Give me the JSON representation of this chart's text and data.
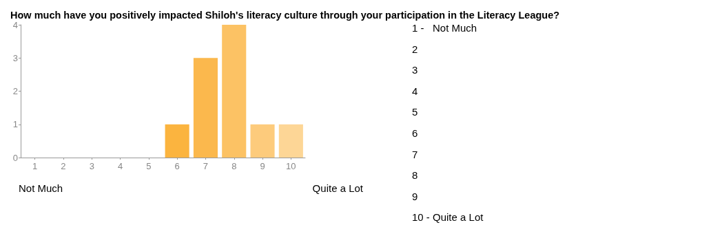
{
  "chart_data": {
    "type": "bar",
    "title": "How much have you positively impacted Shiloh's literacy culture through your participation in the Literacy League?",
    "categories": [
      "1",
      "2",
      "3",
      "4",
      "5",
      "6",
      "7",
      "8",
      "9",
      "10"
    ],
    "values": [
      0,
      0,
      0,
      0,
      0,
      1,
      3,
      4,
      1,
      1
    ],
    "colors": [
      "#fbb43f",
      "#fbb43f",
      "#fbb43f",
      "#fbb43f",
      "#fbb43f",
      "#fbb43f",
      "#fbb84d",
      "#fcc264",
      "#fdcb7c",
      "#fdd696"
    ],
    "ylim": [
      0,
      4
    ],
    "yticks": [
      0,
      1,
      2,
      3,
      4
    ],
    "grid": false,
    "annotations": [
      "Not Much",
      "Quite a Lot",
      "1 -   Not Much",
      "2",
      "3",
      "4",
      "5",
      "6",
      "7",
      "8",
      "9",
      "10 - Quite a Lot"
    ]
  }
}
